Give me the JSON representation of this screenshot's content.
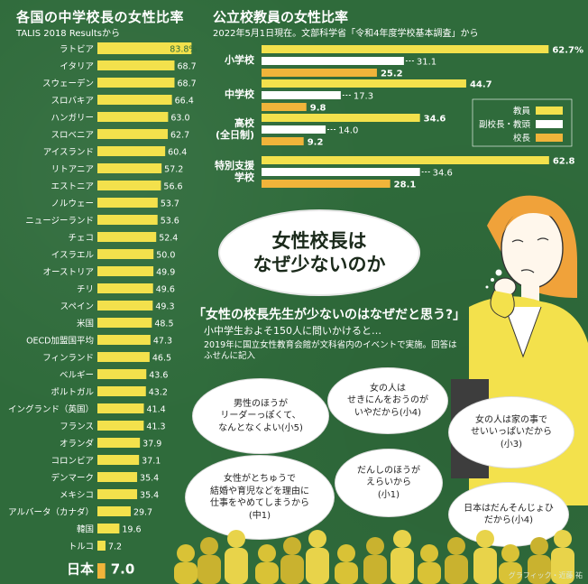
{
  "left": {
    "title": "各国の中学校長の女性比率",
    "subtitle": "TALIS 2018 Resultsから"
  },
  "right": {
    "title": "公立校教員の女性比率",
    "subtitle": "2022年5月1日現在。文部科学省「令和4年度学校基本調査」から"
  },
  "headline": "女性校長は\nなぜ少ないのか",
  "question": {
    "title": "「女性の校長先生が少ないのはなぜだと思う?」",
    "sub": "小中学生およそ150人に問いかけると…",
    "note": "2019年に国立女性教育会館が文科省内のイベントで実施。回答はふせんに記入"
  },
  "bubbles": [
    "男性のほうが\nリーダーっぽくて、\nなんとなくよい(小5)",
    "女の人は\nせきにんをおうのが\nいやだから(小4)",
    "女の人は家の事で\nせいいっぱいだから\n(小3)",
    "女性がとちゅうで\n結婚や育児などを理由に\n仕事をやめてしまうから\n(中1)",
    "だんしのほうが\nえらいから\n(小1)",
    "日本はだんそんじょひ\nだから(小4)"
  ],
  "credit": "グラフィック・近藤 祐",
  "colors": {
    "bg": "#2f6b3b",
    "bar": "#f3e14c",
    "vice": "#ffffff",
    "principal": "#f0b43a",
    "japan": "#f0b43a",
    "highlight": "#f3e14c"
  },
  "chart_data": [
    {
      "type": "bar",
      "orientation": "horizontal",
      "title": "各国の中学校長の女性比率",
      "subtitle": "TALIS 2018 Resultsから",
      "categories": [
        "ラトビア",
        "イタリア",
        "スウェーデン",
        "スロバキア",
        "ハンガリー",
        "スロベニア",
        "アイスランド",
        "リトアニア",
        "エストニア",
        "ノルウェー",
        "ニュージーランド",
        "チェコ",
        "イスラエル",
        "オーストリア",
        "チリ",
        "スペイン",
        "米国",
        "OECD加盟国平均",
        "フィンランド",
        "ベルギー",
        "ポルトガル",
        "イングランド（英国）",
        "フランス",
        "オランダ",
        "コロンビア",
        "デンマーク",
        "メキシコ",
        "アルバータ（カナダ）",
        "韓国",
        "トルコ",
        "日本"
      ],
      "values": [
        83.8,
        68.7,
        68.7,
        66.4,
        63.0,
        62.7,
        60.4,
        57.2,
        56.6,
        53.7,
        53.6,
        52.4,
        50.0,
        49.9,
        49.6,
        49.3,
        48.5,
        47.3,
        46.5,
        43.6,
        43.2,
        41.4,
        41.3,
        37.9,
        37.1,
        35.4,
        35.4,
        29.7,
        19.6,
        7.2,
        7.0
      ],
      "value_labels": [
        "83.8%",
        "68.7",
        "68.7",
        "66.4",
        "63.0",
        "62.7",
        "60.4",
        "57.2",
        "56.6",
        "53.7",
        "53.6",
        "52.4",
        "50.0",
        "49.9",
        "49.6",
        "49.3",
        "48.5",
        "47.3",
        "46.5",
        "43.6",
        "43.2",
        "41.4",
        "41.3",
        "37.9",
        "37.1",
        "35.4",
        "35.4",
        "29.7",
        "19.6",
        "7.2",
        "7.0"
      ],
      "xlim": [
        0,
        90
      ]
    },
    {
      "type": "bar",
      "orientation": "horizontal",
      "title": "公立校教員の女性比率",
      "subtitle": "2022年5月1日現在。文部科学省「令和4年度学校基本調査」から",
      "categories": [
        "小学校",
        "中学校",
        "高校\n(全日制)",
        "特別支援\n学校"
      ],
      "series": [
        {
          "name": "教員",
          "values": [
            62.7,
            44.7,
            34.6,
            62.8
          ],
          "labels": [
            "62.7%",
            "44.7",
            "34.6",
            "62.8"
          ]
        },
        {
          "name": "副校長・教頭",
          "values": [
            31.1,
            17.3,
            14.0,
            34.6
          ],
          "labels": [
            "31.1",
            "17.3",
            "14.0",
            "34.6"
          ]
        },
        {
          "name": "校長",
          "values": [
            25.2,
            9.8,
            9.2,
            28.1
          ],
          "labels": [
            "25.2",
            "9.8",
            "9.2",
            "28.1"
          ]
        }
      ],
      "legend": "right",
      "xlim": [
        0,
        65
      ]
    }
  ]
}
